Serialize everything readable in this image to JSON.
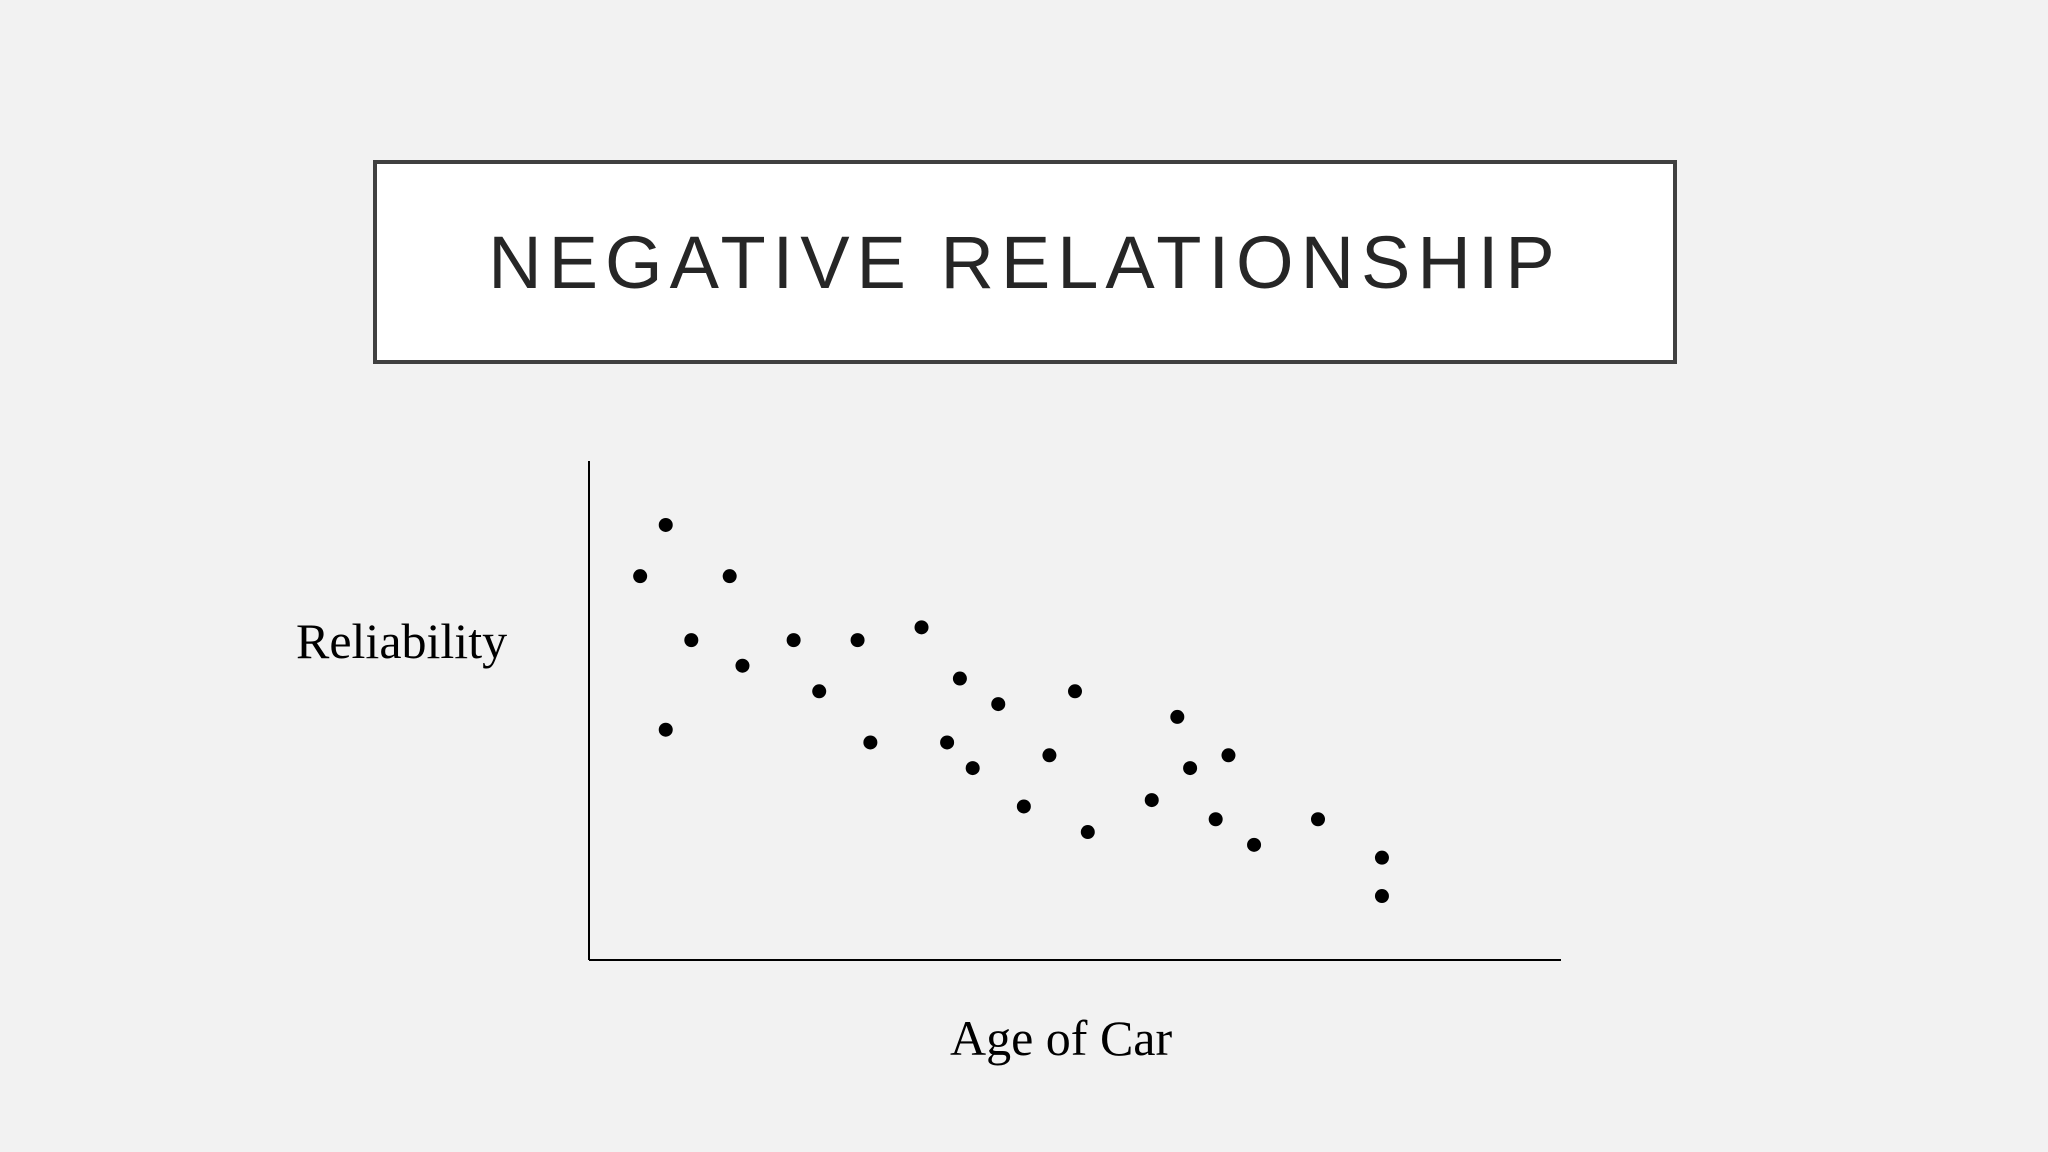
{
  "chart_data": {
    "type": "scatter",
    "title": "NEGATIVE RELATIONSHIP",
    "xlabel": "Age of Car",
    "ylabel": "Reliability",
    "xlim": [
      0,
      38
    ],
    "ylim": [
      0,
      39
    ],
    "grid": false,
    "legend": "none",
    "points": [
      {
        "x": 2,
        "y": 30
      },
      {
        "x": 3,
        "y": 34
      },
      {
        "x": 3,
        "y": 18
      },
      {
        "x": 4,
        "y": 25
      },
      {
        "x": 5.5,
        "y": 30
      },
      {
        "x": 6,
        "y": 23
      },
      {
        "x": 8,
        "y": 25
      },
      {
        "x": 9,
        "y": 21
      },
      {
        "x": 10.5,
        "y": 25
      },
      {
        "x": 11,
        "y": 17
      },
      {
        "x": 13,
        "y": 26
      },
      {
        "x": 14,
        "y": 17
      },
      {
        "x": 14.5,
        "y": 22
      },
      {
        "x": 15,
        "y": 15
      },
      {
        "x": 16,
        "y": 20
      },
      {
        "x": 17,
        "y": 12
      },
      {
        "x": 18,
        "y": 16
      },
      {
        "x": 19,
        "y": 21
      },
      {
        "x": 19.5,
        "y": 10
      },
      {
        "x": 22,
        "y": 12.5
      },
      {
        "x": 23,
        "y": 19
      },
      {
        "x": 23.5,
        "y": 15
      },
      {
        "x": 24.5,
        "y": 11
      },
      {
        "x": 25,
        "y": 16
      },
      {
        "x": 26,
        "y": 9
      },
      {
        "x": 28.5,
        "y": 11
      },
      {
        "x": 31,
        "y": 8
      },
      {
        "x": 31,
        "y": 5
      }
    ],
    "colors": {
      "point": "#000000",
      "axis": "#000000"
    }
  }
}
